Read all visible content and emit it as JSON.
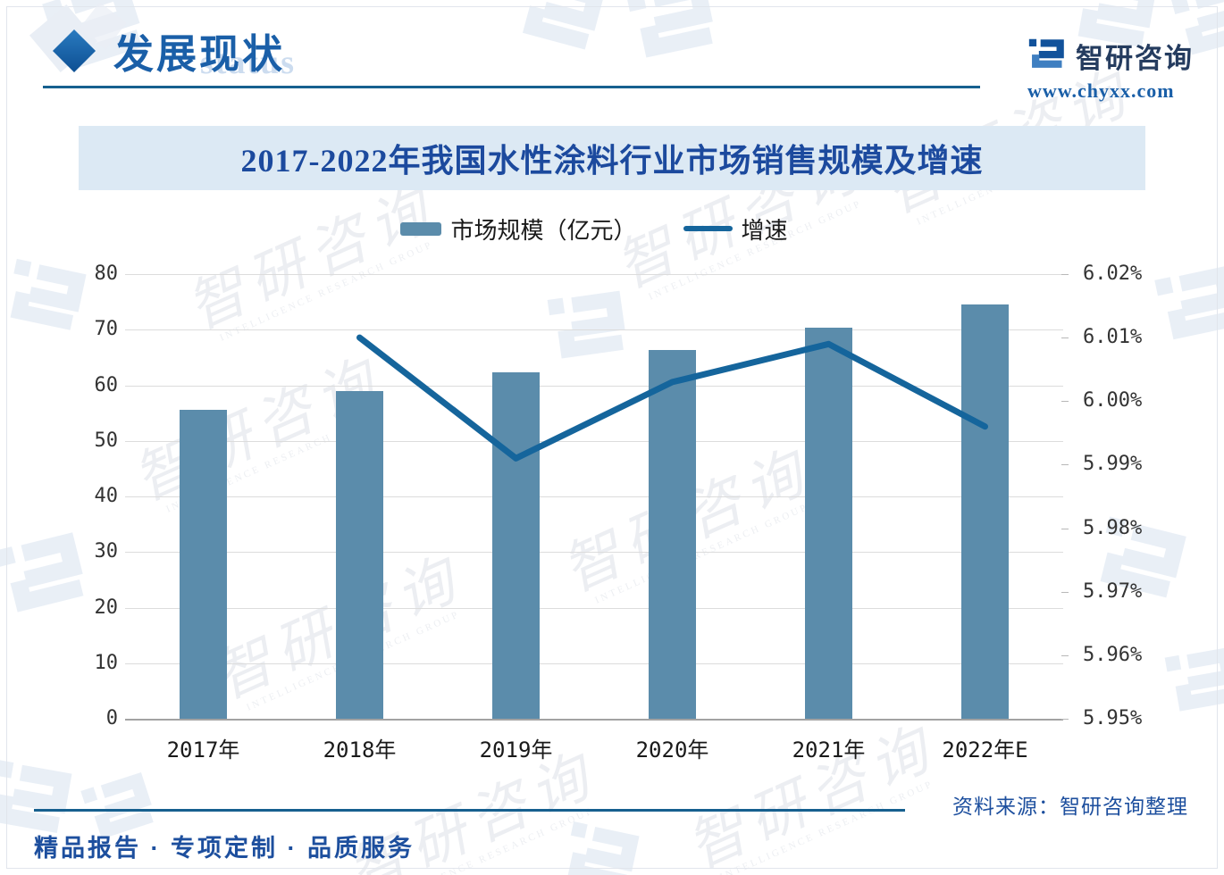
{
  "header": {
    "section_title": "发展现状",
    "section_title_ghost": "status"
  },
  "brand": {
    "name": "智研咨询",
    "website": "www.chyxx.com"
  },
  "chart_data": {
    "type": "bar+line",
    "title": "2017-2022年我国水性涂料行业市场销售规模及增速",
    "categories": [
      "2017年",
      "2018年",
      "2019年",
      "2020年",
      "2021年",
      "2022年E"
    ],
    "series": [
      {
        "name": "市场规模（亿元）",
        "type": "bar",
        "axis": "left",
        "color": "#5b8cab",
        "values": [
          55.6,
          58.9,
          62.4,
          66.4,
          70.4,
          74.5
        ]
      },
      {
        "name": "增速",
        "type": "line",
        "axis": "right",
        "color": "#15659c",
        "values": [
          null,
          6.01,
          5.991,
          6.003,
          6.009,
          5.996
        ]
      }
    ],
    "left_axis": {
      "min": 0,
      "max": 80,
      "step": 10,
      "tick_labels": [
        "80",
        "70",
        "60",
        "50",
        "40",
        "30",
        "20",
        "10",
        "0"
      ]
    },
    "right_axis": {
      "min": 5.95,
      "max": 6.02,
      "step": 0.01,
      "tick_labels": [
        "6.02%",
        "6.01%",
        "6.00%",
        "5.99%",
        "5.98%",
        "5.97%",
        "5.96%",
        "5.95%"
      ]
    },
    "grid": true,
    "legend_position": "top"
  },
  "footer": {
    "source": "资料来源：智研咨询整理",
    "tagline": "精品报告 · 专项定制 · 品质服务"
  },
  "watermark": {
    "text": "智研咨询",
    "subtext": "INTELLIGENCE RESEARCH GROUP"
  },
  "colors": {
    "accent_dark_blue": "#16608f",
    "title_blue": "#1c4a9e",
    "banner_bg": "#dce9f4",
    "bar_fill": "#5b8cab",
    "line_stroke": "#15659c",
    "grid_line": "#dcdcdc",
    "watermark_blue": "#cfdced"
  }
}
